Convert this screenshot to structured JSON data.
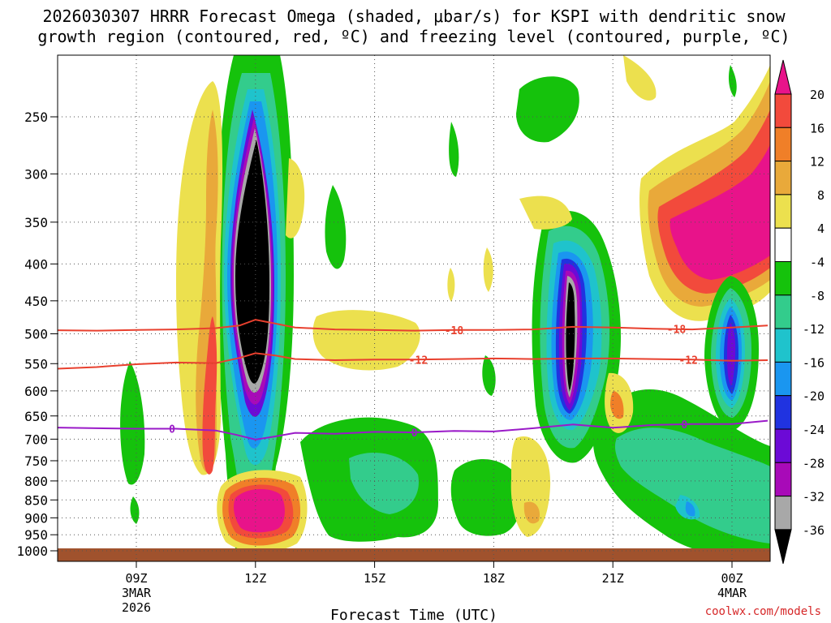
{
  "chart_data": {
    "type": "contour",
    "title_line1": "2026030307 HRRR Forecast Omega (shaded, μbar/s) for KSPI with dendritic snow",
    "title_line2": "growth region (contoured, red, ºC) and freezing level (contoured, purple, ºC)",
    "xlabel": "Forecast Time (UTC)",
    "credit": "coolwx.com/models",
    "x_range_hours": [
      6.5,
      24.9
    ],
    "x_ticks": [
      {
        "hour": 9,
        "label": "09Z",
        "sub1": "3MAR",
        "sub2": "2026"
      },
      {
        "hour": 12,
        "label": "12Z",
        "sub1": "",
        "sub2": ""
      },
      {
        "hour": 15,
        "label": "15Z",
        "sub1": "",
        "sub2": ""
      },
      {
        "hour": 18,
        "label": "18Z",
        "sub1": "",
        "sub2": ""
      },
      {
        "hour": 21,
        "label": "21Z",
        "sub1": "",
        "sub2": ""
      },
      {
        "hour": 24,
        "label": "00Z",
        "sub1": "4MAR",
        "sub2": ""
      }
    ],
    "y_range_hpa": [
      200,
      1030
    ],
    "y_ticks": [
      "250",
      "300",
      "350",
      "400",
      "450",
      "500",
      "550",
      "600",
      "650",
      "700",
      "750",
      "800",
      "850",
      "900",
      "950",
      "1000"
    ],
    "colorbar": {
      "labels": [
        "20",
        "16",
        "12",
        "8",
        "4",
        "-4",
        "-8",
        "-12",
        "-16",
        "-20",
        "-24",
        "-28",
        "-32",
        "-36"
      ],
      "colors": [
        "#e8138a",
        "#f24a3c",
        "#f07f28",
        "#e9a93a",
        "#ece04e",
        "#ffffff",
        "#15c20c",
        "#33cc8c",
        "#1fc3cc",
        "#1a96f0",
        "#2033e0",
        "#6c0ad6",
        "#a80ab8",
        "#a8a8a8",
        "#000000"
      ]
    },
    "temperature_contours": [
      {
        "name": "-18C",
        "label": "-18",
        "color": "#e8402e",
        "points": [
          [
            6.5,
            494
          ],
          [
            8,
            495
          ],
          [
            9,
            494
          ],
          [
            10,
            493
          ],
          [
            11,
            491
          ],
          [
            11.6,
            487
          ],
          [
            12,
            478
          ],
          [
            12.5,
            484
          ],
          [
            13,
            490
          ],
          [
            14,
            493
          ],
          [
            15,
            494
          ],
          [
            16,
            495
          ],
          [
            17,
            494
          ],
          [
            18,
            494
          ],
          [
            19,
            493
          ],
          [
            20,
            489
          ],
          [
            21,
            490
          ],
          [
            22,
            492
          ],
          [
            23,
            493
          ],
          [
            24,
            490
          ],
          [
            24.9,
            487
          ]
        ],
        "label_positions": [
          17,
          22.6
        ]
      },
      {
        "name": "-12C",
        "label": "-12",
        "color": "#e8402e",
        "points": [
          [
            6.5,
            557
          ],
          [
            7,
            559
          ],
          [
            8,
            556
          ],
          [
            9,
            551
          ],
          [
            10,
            548
          ],
          [
            11,
            549
          ],
          [
            11.6,
            540
          ],
          [
            12,
            532
          ],
          [
            12.5,
            536
          ],
          [
            13,
            542
          ],
          [
            14,
            544
          ],
          [
            15,
            543
          ],
          [
            16,
            543
          ],
          [
            17,
            542
          ],
          [
            18,
            541
          ],
          [
            19,
            542
          ],
          [
            20,
            541
          ],
          [
            21,
            541
          ],
          [
            22,
            542
          ],
          [
            23,
            543
          ],
          [
            24,
            545
          ],
          [
            24.9,
            544
          ]
        ],
        "label_positions": [
          16.1,
          22.9
        ]
      },
      {
        "name": "0C freezing level",
        "label": "0",
        "color": "#9a1ac8",
        "points": [
          [
            6.5,
            674
          ],
          [
            8,
            676
          ],
          [
            9,
            677
          ],
          [
            10,
            677
          ],
          [
            11,
            681
          ],
          [
            11.5,
            690
          ],
          [
            12,
            701
          ],
          [
            12.5,
            694
          ],
          [
            13,
            686
          ],
          [
            14,
            688
          ],
          [
            15,
            684
          ],
          [
            16,
            685
          ],
          [
            17,
            682
          ],
          [
            18,
            683
          ],
          [
            19,
            676
          ],
          [
            20,
            668
          ],
          [
            21,
            675
          ],
          [
            22,
            669
          ],
          [
            23,
            667
          ],
          [
            24,
            667
          ],
          [
            24.9,
            660
          ]
        ],
        "label_positions": [
          9.9,
          16,
          22.8
        ]
      }
    ],
    "omega_features": [
      {
        "name": "strong upward motion core 12Z",
        "center_hour": 12.0,
        "center_hpa": 400,
        "min_value": -36
      },
      {
        "name": "strong upward motion core 20Z",
        "center_hour": 19.95,
        "center_hpa": 490,
        "min_value": -36
      },
      {
        "name": "downward motion max 12Z low levels",
        "center_hour": 12.1,
        "center_hpa": 880,
        "max_value": 20
      },
      {
        "name": "downward motion max upper right",
        "center_hour": 23.8,
        "center_hpa": 340,
        "max_value": 20
      }
    ]
  }
}
